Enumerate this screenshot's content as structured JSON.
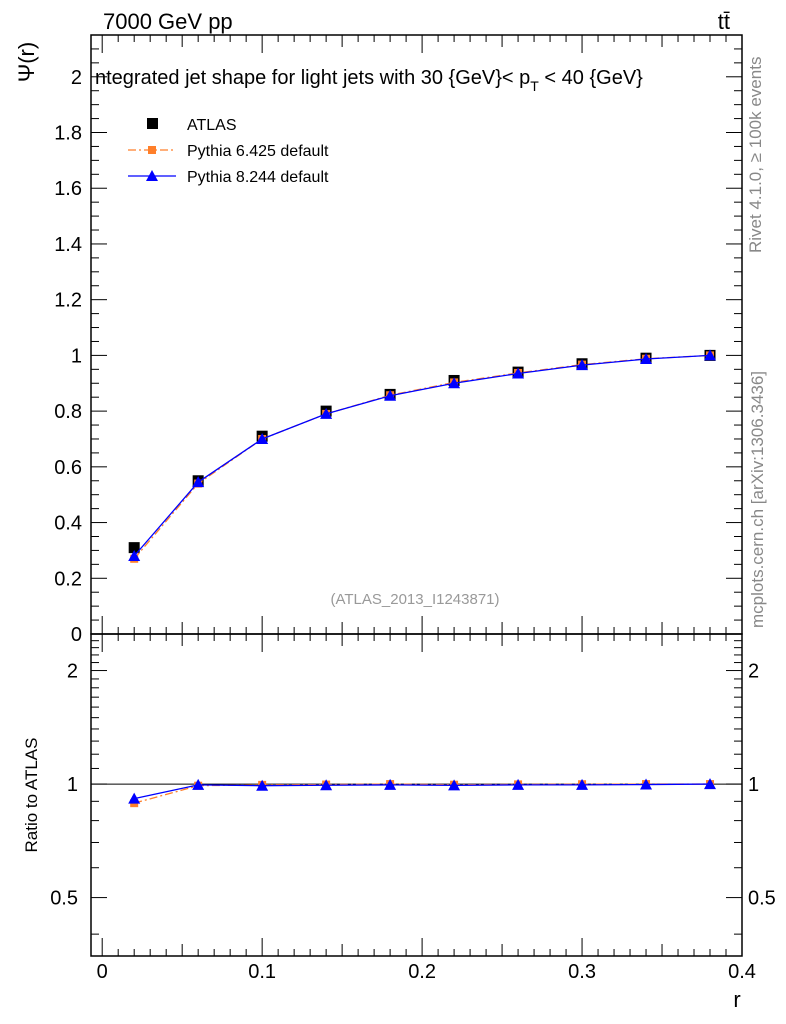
{
  "header": {
    "energy_label": "7000 GeV pp",
    "process_label": "tt̄"
  },
  "side_labels": {
    "rivet": "Rivet 4.1.0, ≥ 100k events",
    "mcplots": "mcplots.cern.ch [arXiv:1306.3436]"
  },
  "chart_data": [
    {
      "type": "line",
      "title": "ntegrated jet shape for light jets with 30 {GeV}< p",
      "title_sub": "T",
      "title_tail": " < 40 {GeV}",
      "ylabel": "Ψ(r)",
      "xlabel": "r",
      "xlim": [
        -0.007,
        0.4
      ],
      "ylim": [
        0,
        2.15
      ],
      "watermark": "(ATLAS_2013_I1243871)",
      "yticks": [
        0,
        0.2,
        0.4,
        0.6,
        0.8,
        1,
        1.2,
        1.4,
        1.6,
        1.8,
        2
      ],
      "ytick_labels": [
        "0",
        "0.2",
        "0.4",
        "0.6",
        "0.8",
        "1",
        "1.2",
        "1.4",
        "1.6",
        "1.8",
        "2"
      ],
      "x": [
        0.02,
        0.06,
        0.1,
        0.14,
        0.18,
        0.22,
        0.26,
        0.3,
        0.34,
        0.38
      ],
      "series": [
        {
          "name": "ATLAS",
          "style": "data-square",
          "color": "#000000",
          "values": [
            0.31,
            0.55,
            0.71,
            0.8,
            0.86,
            0.91,
            0.94,
            0.97,
            0.99,
            1.0
          ]
        },
        {
          "name": "Pythia 6.425 default",
          "style": "dashdot-square",
          "color": "#ff7f2a",
          "values": [
            0.27,
            0.54,
            0.7,
            0.79,
            0.857,
            0.903,
            0.937,
            0.967,
            0.988,
            1.0
          ]
        },
        {
          "name": "Pythia 8.244 default",
          "style": "solid-triangle",
          "color": "#0000ff",
          "values": [
            0.28,
            0.545,
            0.7,
            0.79,
            0.855,
            0.9,
            0.935,
            0.965,
            0.987,
            1.0
          ]
        }
      ]
    },
    {
      "type": "line",
      "title": "",
      "ylabel": "Ratio to ATLAS",
      "xlabel": "r",
      "xlim": [
        -0.007,
        0.4
      ],
      "ylim": [
        0.35,
        2.5
      ],
      "scale": "log",
      "yticks": [
        0.5,
        1,
        2
      ],
      "ytick_labels": [
        "0.5",
        "1",
        "2"
      ],
      "xticks": [
        0,
        0.1,
        0.2,
        0.3,
        0.4
      ],
      "xtick_labels": [
        "0",
        "0.1",
        "0.2",
        "0.3",
        "0.4"
      ],
      "x": [
        0.02,
        0.06,
        0.1,
        0.14,
        0.18,
        0.22,
        0.26,
        0.3,
        0.34,
        0.38
      ],
      "series": [
        {
          "name": "Pythia 6.425 default",
          "style": "dashdot-square",
          "color": "#ff7f2a",
          "values": [
            0.89,
            0.99,
            0.995,
            0.997,
            1.0,
            0.996,
            0.998,
            0.999,
            1.0,
            1.0
          ]
        },
        {
          "name": "Pythia 8.244 default",
          "style": "solid-triangle",
          "color": "#0000ff",
          "values": [
            0.915,
            0.995,
            0.99,
            0.993,
            0.995,
            0.992,
            0.995,
            0.995,
            0.997,
            1.0
          ]
        }
      ]
    }
  ]
}
